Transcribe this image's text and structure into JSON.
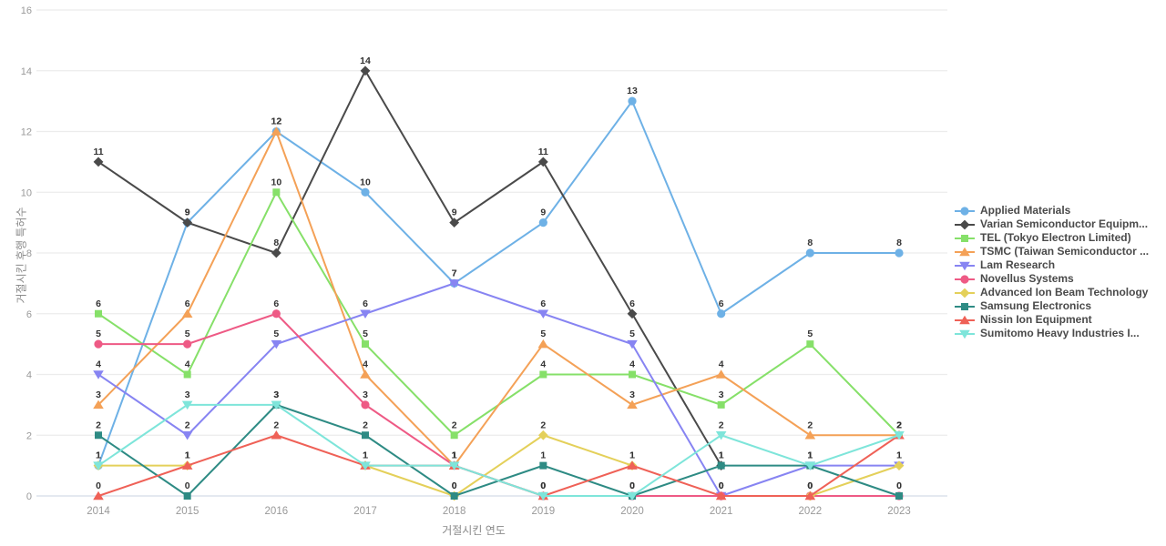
{
  "chart_data": {
    "type": "line",
    "title": "",
    "xlabel": "거절시킨 연도",
    "ylabel": "거절시킨 후행 특허수",
    "categories": [
      "2014",
      "2015",
      "2016",
      "2017",
      "2018",
      "2019",
      "2020",
      "2021",
      "2022",
      "2023"
    ],
    "ylim": [
      0,
      16
    ],
    "yticks": [
      0,
      2,
      4,
      6,
      8,
      10,
      12,
      14,
      16
    ],
    "grid": "horizontal",
    "legend_position": "right",
    "data_label_color": "#333333",
    "tick_color": "#999999",
    "gridline_color": "#ececec",
    "zeroline_color": "#d3dce6",
    "series": [
      {
        "name": "Applied Materials",
        "color": "#6eb1e6",
        "marker": "circle",
        "values": [
          1,
          9,
          12,
          10,
          7,
          9,
          13,
          6,
          8,
          8
        ]
      },
      {
        "name": "Varian Semiconductor Equipm...",
        "color": "#4a4a4a",
        "marker": "diamond",
        "values": [
          11,
          9,
          8,
          14,
          9,
          11,
          6,
          1,
          null,
          null
        ]
      },
      {
        "name": "TEL (Tokyo Electron Limited)",
        "color": "#86e069",
        "marker": "square",
        "values": [
          6,
          4,
          10,
          5,
          2,
          4,
          4,
          3,
          5,
          2
        ]
      },
      {
        "name": "TSMC (Taiwan Semiconductor ...",
        "color": "#f4a157",
        "marker": "triangle-up",
        "values": [
          3,
          6,
          12,
          4,
          1,
          5,
          3,
          4,
          2,
          2
        ]
      },
      {
        "name": "Lam Research",
        "color": "#8784f2",
        "marker": "triangle-down",
        "values": [
          4,
          2,
          5,
          6,
          7,
          6,
          5,
          0,
          1,
          1
        ]
      },
      {
        "name": "Novellus Systems",
        "color": "#ee5a85",
        "marker": "circle",
        "values": [
          5,
          5,
          6,
          3,
          1,
          0,
          0,
          0,
          0,
          0
        ]
      },
      {
        "name": "Advanced Ion Beam Technology",
        "color": "#e4d05a",
        "marker": "diamond",
        "values": [
          1,
          1,
          null,
          1,
          0,
          2,
          1,
          null,
          0,
          1
        ]
      },
      {
        "name": "Samsung Electronics",
        "color": "#2e8b84",
        "marker": "square",
        "values": [
          2,
          0,
          3,
          2,
          0,
          1,
          0,
          1,
          1,
          0
        ]
      },
      {
        "name": "Nissin Ion Equipment",
        "color": "#ef6157",
        "marker": "triangle-up",
        "values": [
          0,
          1,
          2,
          1,
          1,
          0,
          1,
          0,
          0,
          2
        ]
      },
      {
        "name": "Sumitomo Heavy Industries I...",
        "color": "#7ee5da",
        "marker": "triangle-down",
        "values": [
          1,
          3,
          3,
          1,
          1,
          0,
          0,
          2,
          1,
          2
        ]
      }
    ]
  }
}
